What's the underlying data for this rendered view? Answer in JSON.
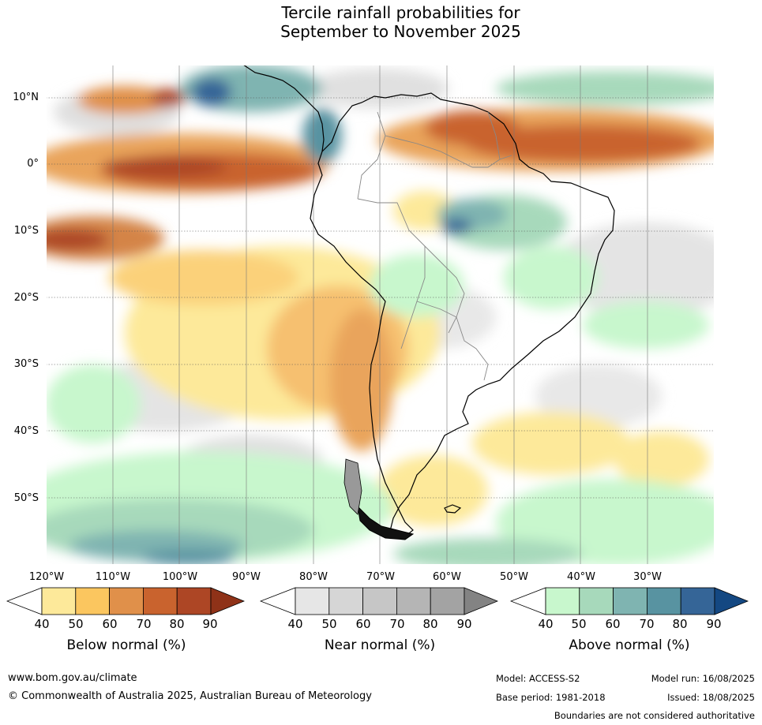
{
  "title": {
    "line1": "Tercile rainfall probabilities for",
    "line2": "September to November 2025"
  },
  "map": {
    "lat_labels": [
      "10°N",
      "0°",
      "10°S",
      "20°S",
      "30°S",
      "40°S",
      "50°S"
    ],
    "lon_labels": [
      "120°W",
      "110°W",
      "100°W",
      "90°W",
      "80°W",
      "70°W",
      "60°W",
      "50°W",
      "40°W",
      "30°W"
    ]
  },
  "colorbars": [
    {
      "title": "Below normal (%)",
      "ticks": [
        "40",
        "50",
        "60",
        "70",
        "80",
        "90"
      ],
      "colors": [
        "#ffffff",
        "#fde99a",
        "#fbc65f",
        "#e0904a",
        "#c9632e",
        "#ad4625",
        "#8f3218"
      ]
    },
    {
      "title": "Near normal (%)",
      "ticks": [
        "40",
        "50",
        "60",
        "70",
        "80",
        "90"
      ],
      "colors": [
        "#ffffff",
        "#e6e6e6",
        "#d6d6d6",
        "#c6c6c6",
        "#b5b5b5",
        "#a3a3a3",
        "#838383"
      ]
    },
    {
      "title": "Above normal (%)",
      "ticks": [
        "40",
        "50",
        "60",
        "70",
        "80",
        "90"
      ],
      "colors": [
        "#ffffff",
        "#c8f7cd",
        "#a7d9bb",
        "#7fb4b1",
        "#5893a1",
        "#356597",
        "#144882"
      ]
    }
  ],
  "footer": {
    "url": "www.bom.gov.au/climate",
    "copyright": "© Commonwealth of Australia 2025, Australian Bureau of Meteorology",
    "model": "Model: ACCESS-S2",
    "model_run": "Model run: 16/08/2025",
    "base_period": "Base period: 1981-2018",
    "issued": "Issued: 18/08/2025",
    "disclaimer": "Boundaries are not considered authoritative"
  }
}
